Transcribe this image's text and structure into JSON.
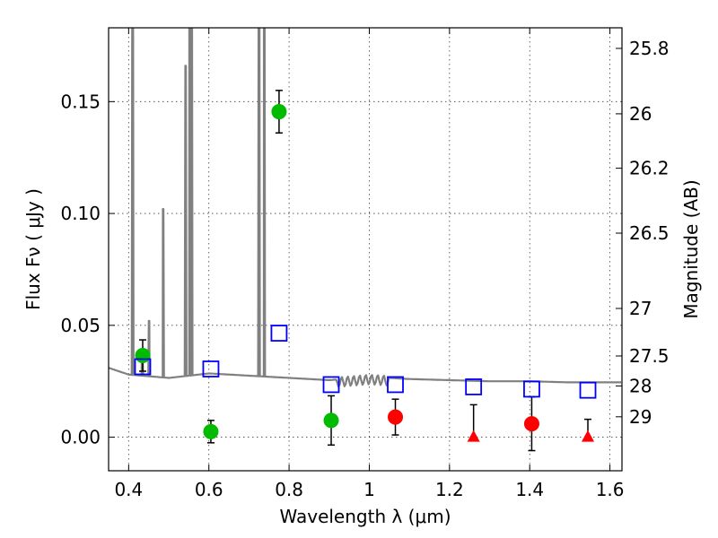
{
  "chart_data": {
    "type": "scatter",
    "title": "",
    "xlabel": "Wavelength  λ (μm)",
    "ylabel": "Flux  Fν  ( μJy )",
    "y2label": "Magnitude (AB)",
    "xlim": [
      0.35,
      1.63
    ],
    "ylim": [
      -0.015,
      0.183
    ],
    "grid": true,
    "x_ticks": [
      {
        "value": 0.4,
        "label": "0.4"
      },
      {
        "value": 0.6,
        "label": "0.6"
      },
      {
        "value": 0.8,
        "label": "0.8"
      },
      {
        "value": 1.0,
        "label": "1"
      },
      {
        "value": 1.2,
        "label": "1.2"
      },
      {
        "value": 1.4,
        "label": "1.4"
      },
      {
        "value": 1.6,
        "label": "1.6"
      }
    ],
    "y_ticks": [
      {
        "value": 0.0,
        "label": "0.00"
      },
      {
        "value": 0.05,
        "label": "0.05"
      },
      {
        "value": 0.1,
        "label": "0.10"
      },
      {
        "value": 0.15,
        "label": "0.15"
      }
    ],
    "y2_ticks": [
      {
        "value": 25.8,
        "label": "25.8"
      },
      {
        "value": 26.0,
        "label": "26"
      },
      {
        "value": 26.2,
        "label": "26.2"
      },
      {
        "value": 26.5,
        "label": "26.5"
      },
      {
        "value": 27.0,
        "label": "27"
      },
      {
        "value": 27.5,
        "label": "27.5"
      },
      {
        "value": 28.0,
        "label": "28"
      },
      {
        "value": 29.0,
        "label": "29"
      }
    ],
    "series": [
      {
        "kind": "spectrum",
        "color": "#808080",
        "continuum": [
          [
            0.35,
            0.031
          ],
          [
            0.4,
            0.028
          ],
          [
            0.5,
            0.0265
          ],
          [
            0.6,
            0.0285
          ],
          [
            0.7,
            0.0275
          ],
          [
            0.8,
            0.0265
          ],
          [
            0.9,
            0.0255
          ],
          [
            1.0,
            0.027
          ],
          [
            1.1,
            0.026
          ],
          [
            1.2,
            0.0255
          ],
          [
            1.3,
            0.025
          ],
          [
            1.4,
            0.025
          ],
          [
            1.5,
            0.0245
          ],
          [
            1.63,
            0.0245
          ]
        ],
        "lines": [
          {
            "x": 0.41,
            "peak": 0.25
          },
          {
            "x": 0.434,
            "peak": 0.037
          },
          {
            "x": 0.451,
            "peak": 0.052
          },
          {
            "x": 0.486,
            "peak": 0.102
          },
          {
            "x": 0.542,
            "peak": 0.166
          },
          {
            "x": 0.552,
            "peak": 0.25
          },
          {
            "x": 0.557,
            "peak": 0.25
          },
          {
            "x": 0.725,
            "peak": 0.25
          },
          {
            "x": 0.738,
            "peak": 0.25
          }
        ]
      },
      {
        "kind": "points",
        "marker": "circle",
        "color": "#00bb00",
        "points": [
          {
            "x": 0.435,
            "y": 0.0365,
            "err": 0.007
          },
          {
            "x": 0.605,
            "y": 0.0025,
            "err": 0.005
          },
          {
            "x": 0.775,
            "y": 0.1455,
            "err": 0.0095
          },
          {
            "x": 0.905,
            "y": 0.0075,
            "err": 0.011
          }
        ]
      },
      {
        "kind": "points",
        "marker": "circle",
        "color": "#ff0000",
        "points": [
          {
            "x": 1.065,
            "y": 0.009,
            "err": 0.008
          },
          {
            "x": 1.405,
            "y": 0.006,
            "err": 0.012
          }
        ]
      },
      {
        "kind": "points",
        "marker": "triangle",
        "color": "#ff0000",
        "points": [
          {
            "x": 1.26,
            "y": 0.0,
            "err_up": 0.0145
          },
          {
            "x": 1.545,
            "y": 0.0,
            "err_up": 0.008
          }
        ]
      },
      {
        "kind": "points",
        "marker": "open-square",
        "color": "#0000ff",
        "points": [
          {
            "x": 0.435,
            "y": 0.0315
          },
          {
            "x": 0.605,
            "y": 0.0305
          },
          {
            "x": 0.775,
            "y": 0.0465
          },
          {
            "x": 0.905,
            "y": 0.0235
          },
          {
            "x": 1.065,
            "y": 0.0235
          },
          {
            "x": 1.26,
            "y": 0.0225
          },
          {
            "x": 1.405,
            "y": 0.0215
          },
          {
            "x": 1.545,
            "y": 0.021
          }
        ]
      }
    ]
  }
}
